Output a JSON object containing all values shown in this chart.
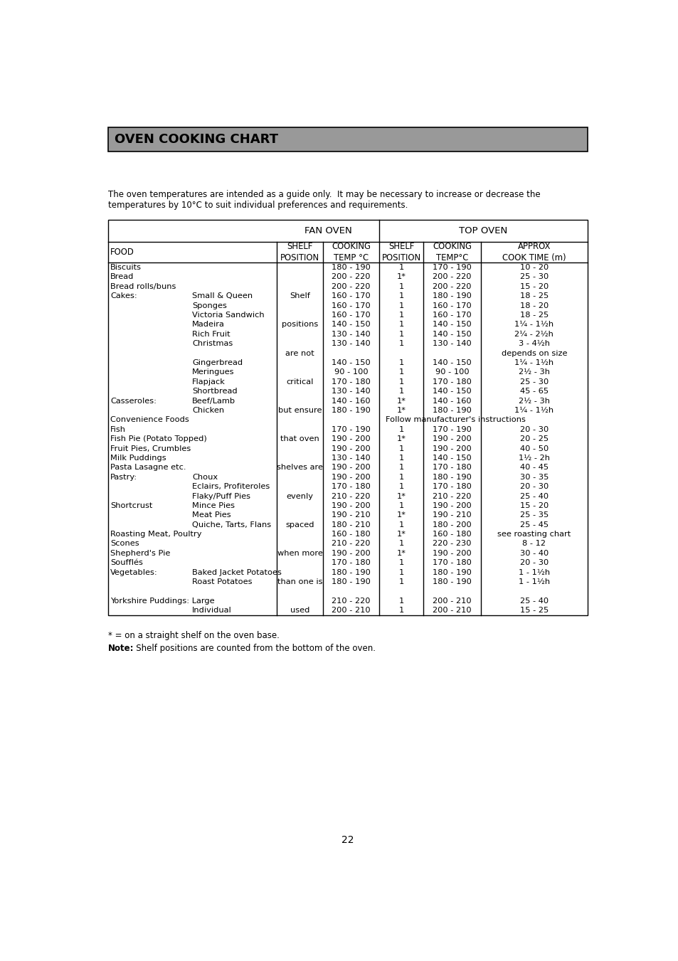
{
  "title": "OVEN COOKING CHART",
  "intro_text": "The oven temperatures are intended as a guide only.  It may be necessary to increase or decrease the\ntemperatures by 10°C to suit individual preferences and requirements.",
  "footnote1": "* = on a straight shelf on the oven base.",
  "footnote2_bold": "Note:",
  "footnote2_rest": "   Shelf positions are counted from the bottom of the oven.",
  "page_number": "22",
  "header_bg": "#999999",
  "rows": [
    {
      "food1": "Biscuits",
      "food2": "",
      "shelf": "",
      "fan_temp": "180 - 190",
      "top_shelf": "1",
      "top_temp": "170 - 190",
      "cook_time": "10 - 20"
    },
    {
      "food1": "Bread",
      "food2": "",
      "shelf": "",
      "fan_temp": "200 - 220",
      "top_shelf": "1*",
      "top_temp": "200 - 220",
      "cook_time": "25 - 30"
    },
    {
      "food1": "Bread rolls/buns",
      "food2": "",
      "shelf": "",
      "fan_temp": "200 - 220",
      "top_shelf": "1",
      "top_temp": "200 - 220",
      "cook_time": "15 - 20"
    },
    {
      "food1": "Cakes:",
      "food2": "Small & Queen",
      "shelf": "Shelf",
      "fan_temp": "160 - 170",
      "top_shelf": "1",
      "top_temp": "180 - 190",
      "cook_time": "18 - 25"
    },
    {
      "food1": "",
      "food2": "Sponges",
      "shelf": "",
      "fan_temp": "160 - 170",
      "top_shelf": "1",
      "top_temp": "160 - 170",
      "cook_time": "18 - 20"
    },
    {
      "food1": "",
      "food2": "Victoria Sandwich",
      "shelf": "",
      "fan_temp": "160 - 170",
      "top_shelf": "1",
      "top_temp": "160 - 170",
      "cook_time": "18 - 25"
    },
    {
      "food1": "",
      "food2": "Madeira",
      "shelf": "positions",
      "fan_temp": "140 - 150",
      "top_shelf": "1",
      "top_temp": "140 - 150",
      "cook_time": "1¼ - 1½h"
    },
    {
      "food1": "",
      "food2": "Rich Fruit",
      "shelf": "",
      "fan_temp": "130 - 140",
      "top_shelf": "1",
      "top_temp": "140 - 150",
      "cook_time": "2¼ - 2½h"
    },
    {
      "food1": "",
      "food2": "Christmas",
      "shelf": "",
      "fan_temp": "130 - 140",
      "top_shelf": "1",
      "top_temp": "130 - 140",
      "cook_time": "3 - 4½h"
    },
    {
      "food1": "",
      "food2": "",
      "shelf": "are not",
      "fan_temp": "",
      "top_shelf": "",
      "top_temp": "",
      "cook_time": "depends on size"
    },
    {
      "food1": "",
      "food2": "Gingerbread",
      "shelf": "",
      "fan_temp": "140 - 150",
      "top_shelf": "1",
      "top_temp": "140 - 150",
      "cook_time": "1¼ - 1½h"
    },
    {
      "food1": "",
      "food2": "Meringues",
      "shelf": "",
      "fan_temp": "90 - 100",
      "top_shelf": "1",
      "top_temp": "90 - 100",
      "cook_time": "2½ - 3h"
    },
    {
      "food1": "",
      "food2": "Flapjack",
      "shelf": "critical",
      "fan_temp": "170 - 180",
      "top_shelf": "1",
      "top_temp": "170 - 180",
      "cook_time": "25 - 30"
    },
    {
      "food1": "",
      "food2": "Shortbread",
      "shelf": "",
      "fan_temp": "130 - 140",
      "top_shelf": "1",
      "top_temp": "140 - 150",
      "cook_time": "45 - 65"
    },
    {
      "food1": "Casseroles:",
      "food2": "Beef/Lamb",
      "shelf": "",
      "fan_temp": "140 - 160",
      "top_shelf": "1*",
      "top_temp": "140 - 160",
      "cook_time": "2½ - 3h"
    },
    {
      "food1": "",
      "food2": "Chicken",
      "shelf": "but ensure",
      "fan_temp": "180 - 190",
      "top_shelf": "1*",
      "top_temp": "180 - 190",
      "cook_time": "1¼ - 1½h"
    },
    {
      "food1": "Convenience Foods",
      "food2": "",
      "shelf": "",
      "fan_temp": "Follow manufacturer's instructions",
      "top_shelf": "",
      "top_temp": "",
      "cook_time": ""
    },
    {
      "food1": "Fish",
      "food2": "",
      "shelf": "",
      "fan_temp": "170 - 190",
      "top_shelf": "1",
      "top_temp": "170 - 190",
      "cook_time": "20 - 30"
    },
    {
      "food1": "Fish Pie (Potato Topped)",
      "food2": "",
      "shelf": "that oven",
      "fan_temp": "190 - 200",
      "top_shelf": "1*",
      "top_temp": "190 - 200",
      "cook_time": "20 - 25"
    },
    {
      "food1": "Fruit Pies, Crumbles",
      "food2": "",
      "shelf": "",
      "fan_temp": "190 - 200",
      "top_shelf": "1",
      "top_temp": "190 - 200",
      "cook_time": "40 - 50"
    },
    {
      "food1": "Milk Puddings",
      "food2": "",
      "shelf": "",
      "fan_temp": "130 - 140",
      "top_shelf": "1",
      "top_temp": "140 - 150",
      "cook_time": "1½ - 2h"
    },
    {
      "food1": "Pasta Lasagne etc.",
      "food2": "",
      "shelf": "shelves are",
      "fan_temp": "190 - 200",
      "top_shelf": "1",
      "top_temp": "170 - 180",
      "cook_time": "40 - 45"
    },
    {
      "food1": "Pastry:",
      "food2": "Choux",
      "shelf": "",
      "fan_temp": "190 - 200",
      "top_shelf": "1",
      "top_temp": "180 - 190",
      "cook_time": "30 - 35"
    },
    {
      "food1": "",
      "food2": "Eclairs, Profiteroles",
      "shelf": "",
      "fan_temp": "170 - 180",
      "top_shelf": "1",
      "top_temp": "170 - 180",
      "cook_time": "20 - 30"
    },
    {
      "food1": "",
      "food2": "Flaky/Puff Pies",
      "shelf": "evenly",
      "fan_temp": "210 - 220",
      "top_shelf": "1*",
      "top_temp": "210 - 220",
      "cook_time": "25 - 40"
    },
    {
      "food1": "Shortcrust",
      "food2": "Mince Pies",
      "shelf": "",
      "fan_temp": "190 - 200",
      "top_shelf": "1",
      "top_temp": "190 - 200",
      "cook_time": "15 - 20"
    },
    {
      "food1": "",
      "food2": "Meat Pies",
      "shelf": "",
      "fan_temp": "190 - 210",
      "top_shelf": "1*",
      "top_temp": "190 - 210",
      "cook_time": "25 - 35"
    },
    {
      "food1": "",
      "food2": "Quiche, Tarts, Flans",
      "shelf": "spaced",
      "fan_temp": "180 - 210",
      "top_shelf": "1",
      "top_temp": "180 - 200",
      "cook_time": "25 - 45"
    },
    {
      "food1": "Roasting Meat, Poultry",
      "food2": "",
      "shelf": "",
      "fan_temp": "160 - 180",
      "top_shelf": "1*",
      "top_temp": "160 - 180",
      "cook_time": "see roasting chart"
    },
    {
      "food1": "Scones",
      "food2": "",
      "shelf": "",
      "fan_temp": "210 - 220",
      "top_shelf": "1",
      "top_temp": "220 - 230",
      "cook_time": "8 - 12"
    },
    {
      "food1": "Shepherd's Pie",
      "food2": "",
      "shelf": "when more",
      "fan_temp": "190 - 200",
      "top_shelf": "1*",
      "top_temp": "190 - 200",
      "cook_time": "30 - 40"
    },
    {
      "food1": "Soufflés",
      "food2": "",
      "shelf": "",
      "fan_temp": "170 - 180",
      "top_shelf": "1",
      "top_temp": "170 - 180",
      "cook_time": "20 - 30"
    },
    {
      "food1": "Vegetables:",
      "food2": "Baked Jacket Potatoes",
      "shelf": "",
      "fan_temp": "180 - 190",
      "top_shelf": "1",
      "top_temp": "180 - 190",
      "cook_time": "1 - 1½h"
    },
    {
      "food1": "",
      "food2": "Roast Potatoes",
      "shelf": "than one is",
      "fan_temp": "180 - 190",
      "top_shelf": "1",
      "top_temp": "180 - 190",
      "cook_time": "1 - 1½h"
    },
    {
      "food1": "",
      "food2": "",
      "shelf": "",
      "fan_temp": "",
      "top_shelf": "",
      "top_temp": "",
      "cook_time": ""
    },
    {
      "food1": "Yorkshire Puddings: Large",
      "food2": "",
      "shelf": "",
      "fan_temp": "210 - 220",
      "top_shelf": "1",
      "top_temp": "200 - 210",
      "cook_time": "25 - 40"
    },
    {
      "food1": "",
      "food2": "Individual",
      "shelf": "used",
      "fan_temp": "200 - 210",
      "top_shelf": "1",
      "top_temp": "200 - 210",
      "cook_time": "15 - 25"
    }
  ]
}
